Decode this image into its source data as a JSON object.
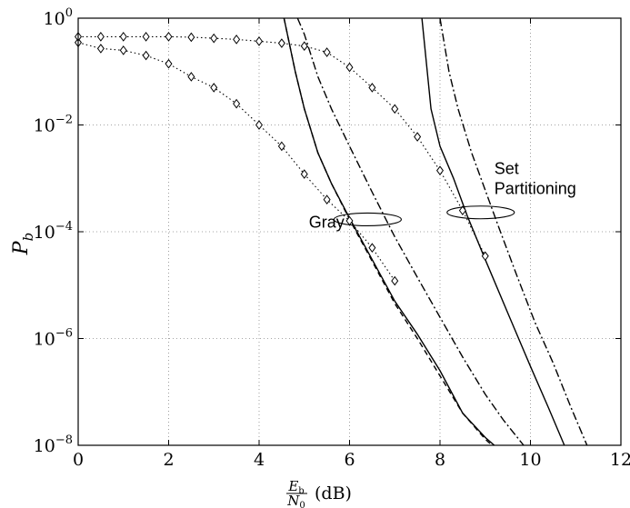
{
  "chart_data": {
    "type": "line",
    "title": "",
    "xlabel": "E_b/N_0 (dB)",
    "xlabel_parts": {
      "num": "E",
      "num_sub": "b",
      "den": "N",
      "den_sub": "0",
      "unit": "(dB)"
    },
    "ylabel": "P",
    "ylabel_sub": "b",
    "xlim": [
      0,
      12
    ],
    "ylim": [
      1e-08,
      1
    ],
    "yscale": "log",
    "grid": true,
    "xticks": [
      {
        "value": 0,
        "label": "0"
      },
      {
        "value": 2,
        "label": "2"
      },
      {
        "value": 4,
        "label": "4"
      },
      {
        "value": 6,
        "label": "6"
      },
      {
        "value": 8,
        "label": "8"
      },
      {
        "value": 10,
        "label": "10"
      },
      {
        "value": 12,
        "label": "12"
      }
    ],
    "yticks": [
      {
        "value": 1,
        "base": "10",
        "exp": "0"
      },
      {
        "value": 0.01,
        "base": "10",
        "exp": "−2"
      },
      {
        "value": 0.0001,
        "base": "10",
        "exp": "−4"
      },
      {
        "value": 1e-06,
        "base": "10",
        "exp": "−6"
      },
      {
        "value": 1e-08,
        "base": "10",
        "exp": "−8"
      }
    ],
    "annotations": [
      {
        "lines": [
          "Gray"
        ],
        "x": 5.1,
        "y": 0.00012,
        "ellipse": {
          "cx": 6.4,
          "cy": 0.00017
        }
      },
      {
        "lines": [
          "Set",
          "Partitioning"
        ],
        "x": 9.2,
        "y": 0.0012,
        "ellipse": {
          "cx": 8.9,
          "cy": 0.00023
        }
      }
    ],
    "series": [
      {
        "style": "solid",
        "x": [
          4.55,
          4.8,
          5.0,
          5.3,
          5.6,
          6.0,
          6.5,
          7.0,
          7.5,
          8.0,
          8.5,
          9.0,
          9.2
        ],
        "y": [
          1,
          0.1,
          0.02,
          0.003,
          0.0008,
          0.00018,
          3e-05,
          5e-06,
          1.2e-06,
          2.5e-07,
          4e-08,
          1.4e-08,
          1e-08
        ]
      },
      {
        "style": "dashed",
        "x": [
          4.55,
          4.8,
          5.0,
          5.3,
          5.6,
          6.0,
          6.5,
          7.0,
          7.5,
          8.0,
          8.5,
          9.0,
          9.15
        ],
        "y": [
          1,
          0.1,
          0.02,
          0.003,
          0.0008,
          0.00017,
          2.8e-05,
          4.5e-06,
          1e-06,
          2e-07,
          4e-08,
          1.3e-08,
          1e-08
        ]
      },
      {
        "style": "dashdot",
        "x": [
          4.85,
          5.0,
          5.3,
          5.6,
          6.0,
          6.5,
          7.0,
          7.5,
          8.0,
          8.5,
          9.0,
          9.4,
          9.85
        ],
        "y": [
          1,
          0.5,
          0.08,
          0.02,
          0.004,
          0.00055,
          8e-05,
          1.4e-05,
          2.5e-06,
          4.5e-07,
          9e-08,
          3e-08,
          1e-08
        ]
      },
      {
        "style": "solid",
        "x": [
          7.6,
          7.8,
          8.0,
          8.3,
          8.6,
          9.0,
          9.5,
          10.0,
          10.4,
          10.75
        ],
        "y": [
          1,
          0.02,
          0.004,
          0.001,
          0.0002,
          3e-05,
          3e-06,
          3e-07,
          5e-08,
          1e-08
        ]
      },
      {
        "style": "dashdot",
        "x": [
          8.0,
          8.2,
          8.4,
          8.7,
          9.0,
          9.3,
          9.7,
          10.1,
          10.5,
          10.9,
          11.25
        ],
        "y": [
          1,
          0.1,
          0.02,
          0.003,
          0.0006,
          0.00012,
          1.5e-05,
          2e-06,
          3.5e-07,
          5e-08,
          1e-08
        ]
      },
      {
        "style": "dotted",
        "marker": "diamond",
        "x": [
          0,
          0.5,
          1,
          1.5,
          2,
          2.5,
          3,
          3.5,
          4,
          4.5,
          5,
          5.5,
          6,
          6.5,
          7
        ],
        "y": [
          0.35,
          0.27,
          0.25,
          0.2,
          0.14,
          0.08,
          0.05,
          0.025,
          0.01,
          0.004,
          0.0012,
          0.0004,
          0.00016,
          5e-05,
          1.2e-05
        ]
      },
      {
        "style": "dotted",
        "marker": "diamond",
        "x": [
          0,
          0.5,
          1,
          1.5,
          2,
          2.5,
          3,
          3.5,
          4,
          4.5,
          5,
          5.5,
          6,
          6.5,
          7,
          7.5,
          8,
          8.5,
          9
        ],
        "y": [
          0.45,
          0.45,
          0.45,
          0.45,
          0.45,
          0.44,
          0.42,
          0.4,
          0.37,
          0.34,
          0.3,
          0.23,
          0.12,
          0.05,
          0.02,
          0.006,
          0.0014,
          0.00025,
          3.5e-05
        ]
      }
    ]
  }
}
